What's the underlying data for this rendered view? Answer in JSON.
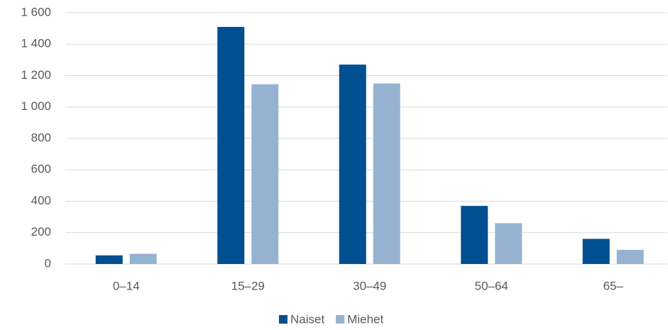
{
  "chart_data": {
    "type": "bar",
    "categories": [
      "0–14",
      "15–29",
      "30–49",
      "50–64",
      "65–"
    ],
    "series": [
      {
        "name": "Naiset",
        "color": "#004f91",
        "values": [
          55,
          1510,
          1270,
          370,
          160
        ]
      },
      {
        "name": "Miehet",
        "color": "#95b3d0",
        "values": [
          65,
          1145,
          1150,
          260,
          90
        ]
      }
    ],
    "ylim": [
      0,
      1600
    ],
    "yticks": [
      0,
      200,
      400,
      600,
      800,
      {
        "value": 1000,
        "label": "1 000"
      },
      {
        "value": 1200,
        "label": "1 200"
      },
      {
        "value": 1400,
        "label": "1 400"
      },
      {
        "value": 1600,
        "label": "1 600"
      }
    ],
    "grid": true,
    "legend": "bottom"
  }
}
